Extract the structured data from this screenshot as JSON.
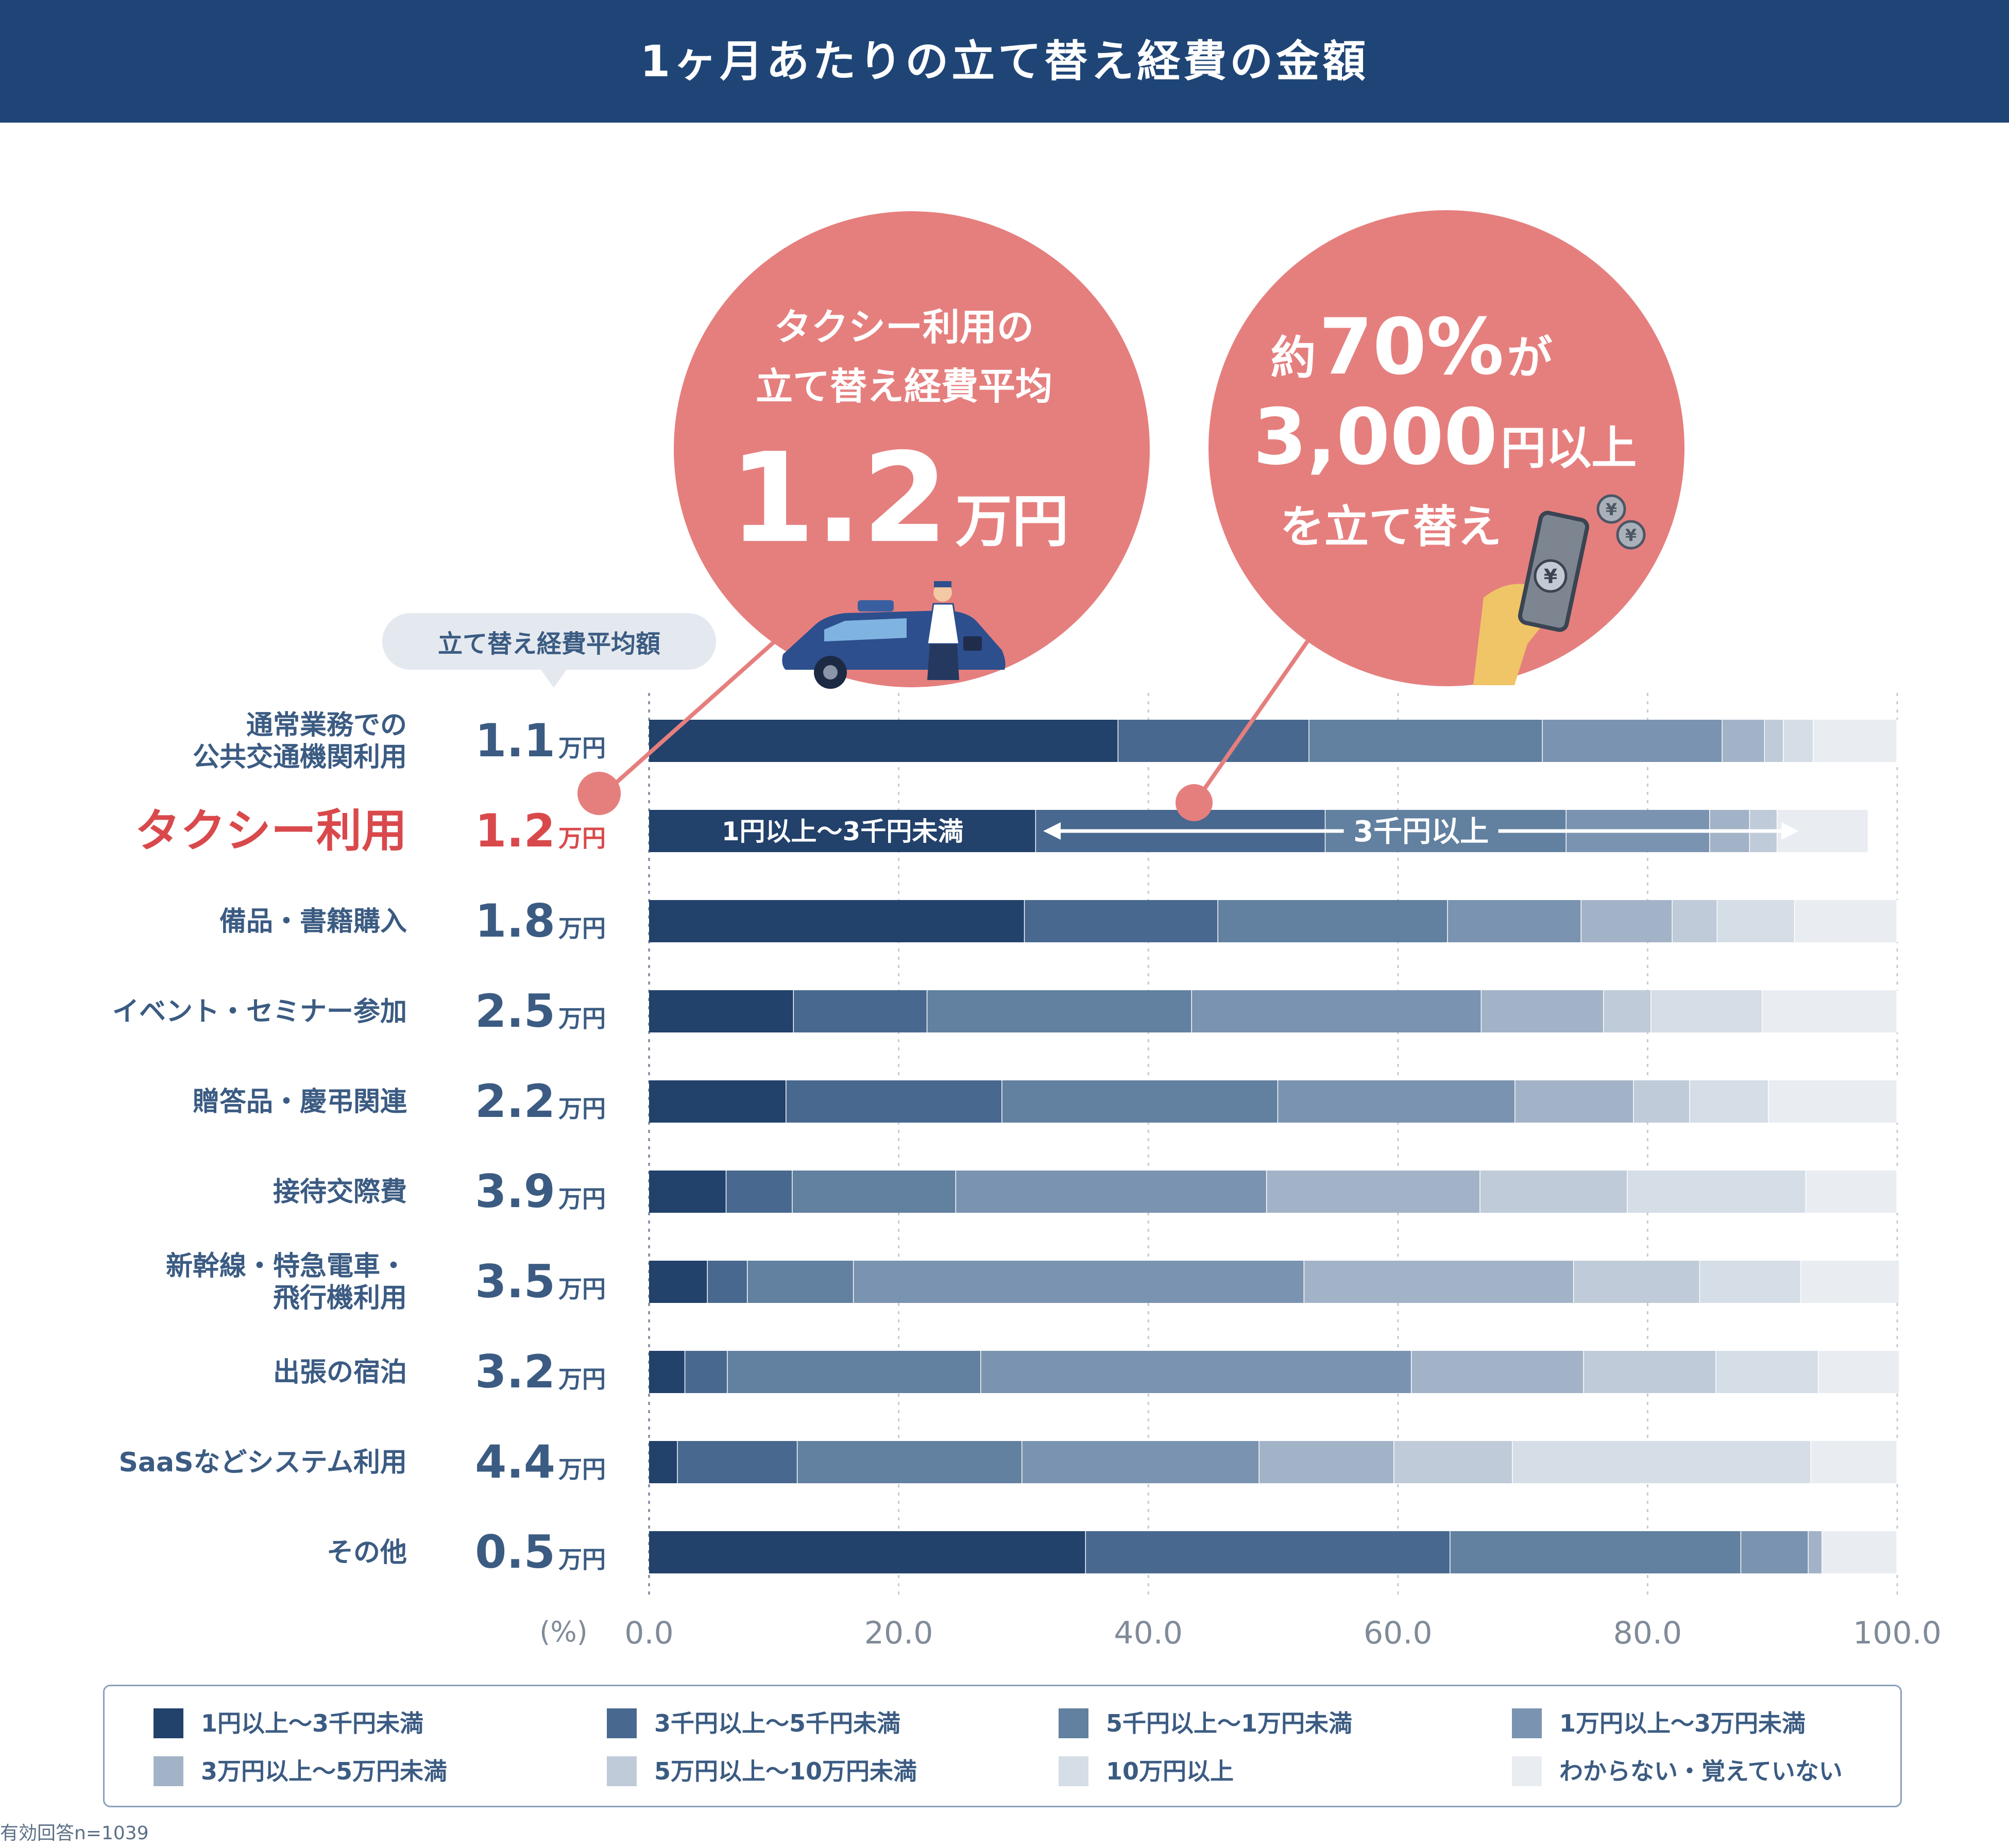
{
  "header": {
    "title": "1ヶ月あたりの立て替え経費の金額"
  },
  "avg_label_bubble": "立て替え経費平均額",
  "callout_left": {
    "line1": "タクシー利用の",
    "line2": "立て替え経費平均",
    "value": "1.2",
    "unit": "万円"
  },
  "callout_right": {
    "prefix": "約",
    "percent": "70%",
    "suffix": "が",
    "amount": "3,000",
    "amount_unit": "円以上",
    "line3": "を立て替え"
  },
  "taxi_annotation": {
    "left": "1円以上～3千円未満",
    "right": "3千円以上"
  },
  "legend_items": [
    "1円以上～3千円未満",
    "3千円以上～5千円未満",
    "5千円以上～1万円未満",
    "1万円以上～3万円未満",
    "3万円以上～5万円未満",
    "5万円以上～10万円未満",
    "10万円以上",
    "わからない・覚えていない"
  ],
  "footnote": "有効回答n=1039",
  "colors": {
    "header_bg": "#1f4576",
    "callout": "#e57f7e",
    "highlight_text": "#d9494c",
    "label_text": "#3b5b82",
    "segments": [
      "#22416b",
      "#48688f",
      "#62809f",
      "#7a93b0",
      "#a3b3c7",
      "#bfcbd8",
      "#d5dde6",
      "#e9edf2"
    ]
  },
  "chart_data": {
    "type": "bar",
    "orientation": "horizontal",
    "stacked": true,
    "xlabel": "(%)",
    "xlim": [
      0,
      100
    ],
    "x_ticks": [
      "0.0",
      "20.0",
      "40.0",
      "60.0",
      "80.0",
      "100.0"
    ],
    "grid": true,
    "legend_position": "bottom",
    "categories": [
      {
        "label": [
          "通常業務での",
          "公共交通機関利用"
        ],
        "avg_value": "1.1",
        "avg_unit": "万円",
        "highlight": false
      },
      {
        "label": [
          "タクシー利用"
        ],
        "avg_value": "1.2",
        "avg_unit": "万円",
        "highlight": true
      },
      {
        "label": [
          "備品・書籍購入"
        ],
        "avg_value": "1.8",
        "avg_unit": "万円",
        "highlight": false
      },
      {
        "label": [
          "イベント・セミナー参加"
        ],
        "avg_value": "2.5",
        "avg_unit": "万円",
        "highlight": false
      },
      {
        "label": [
          "贈答品・慶弔関連"
        ],
        "avg_value": "2.2",
        "avg_unit": "万円",
        "highlight": false
      },
      {
        "label": [
          "接待交際費"
        ],
        "avg_value": "3.9",
        "avg_unit": "万円",
        "highlight": false
      },
      {
        "label": [
          "新幹線・特急電車・",
          "飛行機利用"
        ],
        "avg_value": "3.5",
        "avg_unit": "万円",
        "highlight": false
      },
      {
        "label": [
          "出張の宿泊"
        ],
        "avg_value": "3.2",
        "avg_unit": "万円",
        "highlight": false
      },
      {
        "label": [
          "SaaSなどシステム利用"
        ],
        "avg_value": "4.4",
        "avg_unit": "万円",
        "highlight": false
      },
      {
        "label": [
          "その他"
        ],
        "avg_value": "0.5",
        "avg_unit": "万円",
        "highlight": false
      }
    ],
    "series": [
      {
        "name": "1円以上～3千円未満",
        "values": [
          37.6,
          31.0,
          30.1,
          11.6,
          11.0,
          6.2,
          4.7,
          2.9,
          2.3,
          35.0
        ]
      },
      {
        "name": "3千円以上～5千円未満",
        "values": [
          15.3,
          23.2,
          15.5,
          10.7,
          17.3,
          5.3,
          3.2,
          3.4,
          9.6,
          29.2
        ]
      },
      {
        "name": "5千円以上～1万円未満",
        "values": [
          18.7,
          19.3,
          18.4,
          21.2,
          22.1,
          13.1,
          8.5,
          20.3,
          18.0,
          23.3
        ]
      },
      {
        "name": "1万円以上～3万円未満",
        "values": [
          14.4,
          11.5,
          10.7,
          23.2,
          19.0,
          24.9,
          36.1,
          34.5,
          19.0,
          5.4
        ]
      },
      {
        "name": "3万円以上～5万円未満",
        "values": [
          3.4,
          3.2,
          7.3,
          9.8,
          9.5,
          17.1,
          21.6,
          13.8,
          10.8,
          1.1
        ]
      },
      {
        "name": "5万円以上～10万円未満",
        "values": [
          1.5,
          2.2,
          3.6,
          3.8,
          4.5,
          11.8,
          10.1,
          10.6,
          9.5,
          0
        ]
      },
      {
        "name": "10万円以上",
        "values": [
          2.4,
          0,
          6.2,
          8.9,
          6.3,
          14.3,
          8.1,
          8.2,
          23.9,
          0
        ]
      },
      {
        "name": "わからない・覚えていない",
        "values": [
          6.7,
          7.3,
          8.2,
          10.8,
          10.3,
          7.3,
          7.9,
          6.5,
          6.9,
          6.0
        ]
      }
    ]
  }
}
